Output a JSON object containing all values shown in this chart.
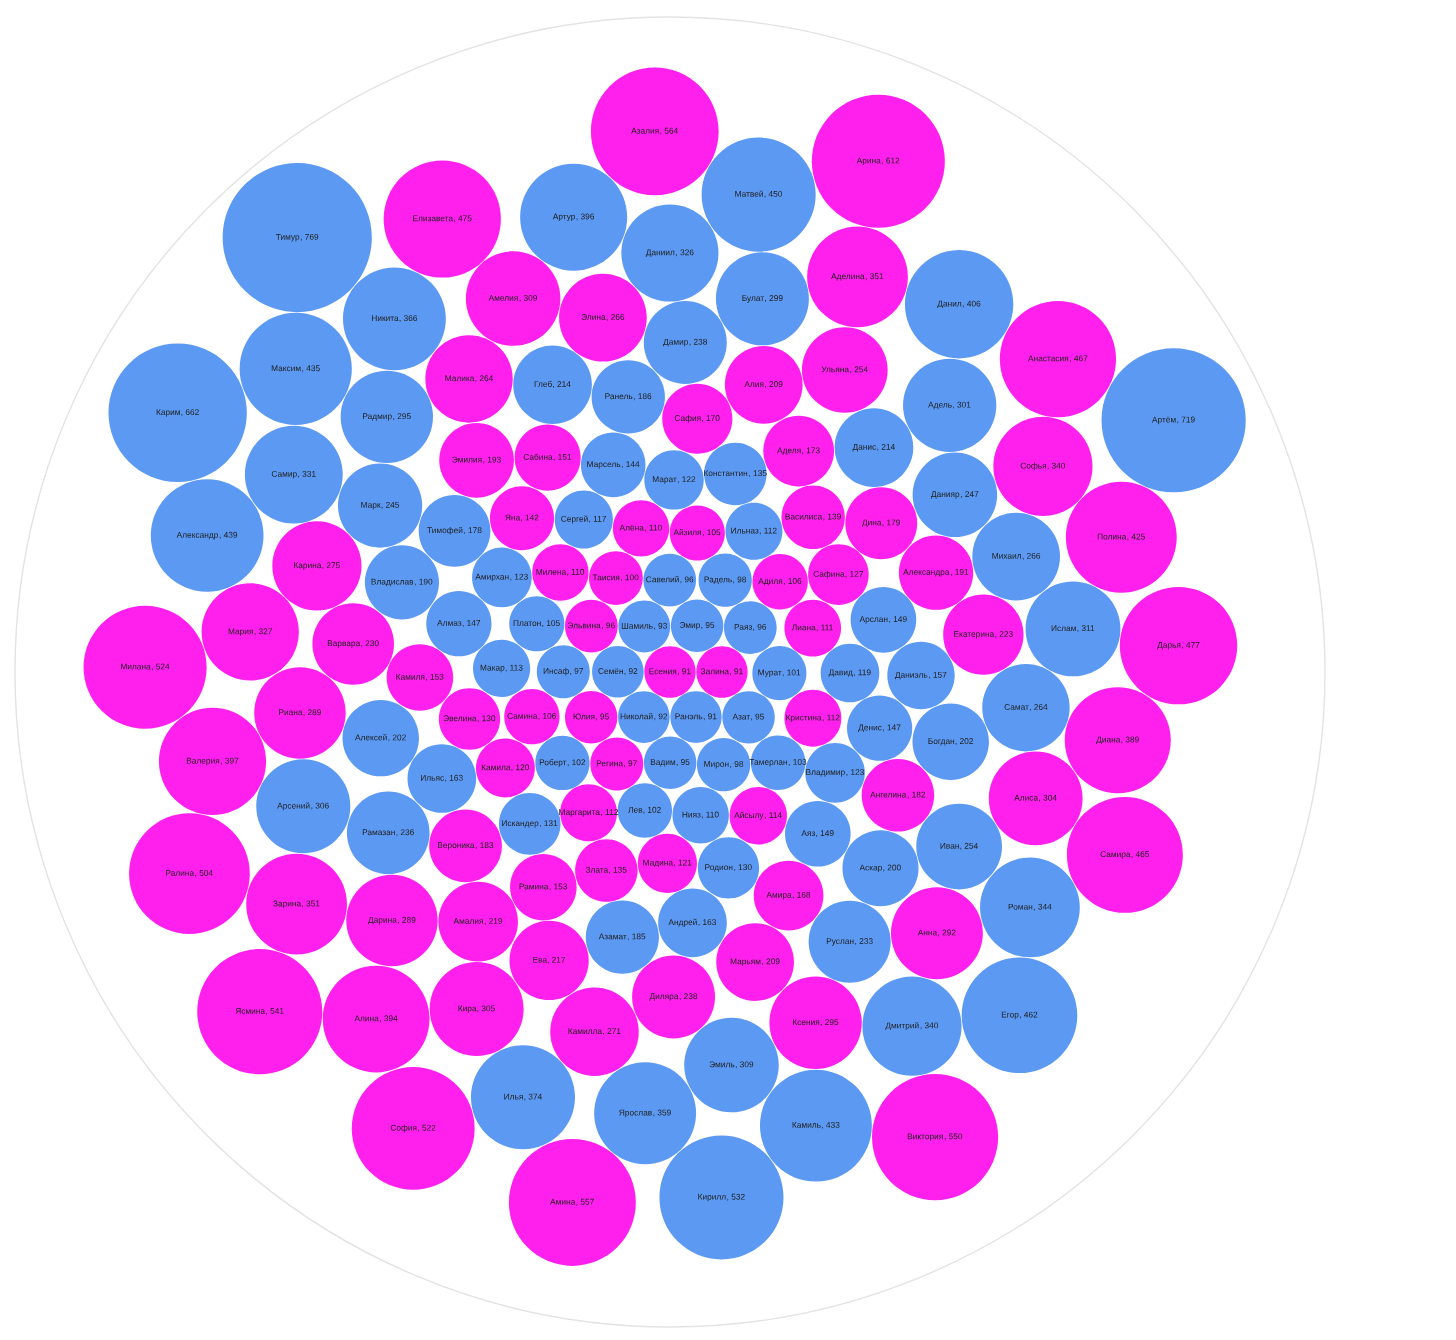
{
  "chart_data": {
    "type": "other",
    "value_labels": [
      ", 769",
      ", 719",
      ", 662",
      ", 612",
      ", 564",
      ", 557",
      ", 550",
      ", 541",
      ", 532",
      ", 524",
      ", 522",
      ", 504",
      ", 477",
      ", 475",
      ", 467",
      ", 465",
      ", 462",
      ", 450",
      ", 439",
      ", 435",
      ", 433",
      ", 425",
      ", 406",
      ", 397",
      ", 396",
      ", 394",
      ", 389",
      ", 374",
      ", 366",
      ", 359",
      ", 351",
      ", 351",
      ", 344",
      ", 340",
      ", 340",
      ", 331",
      ", 327",
      ", 326",
      ", 311",
      ", 309",
      ", 309",
      ", 306",
      ", 305",
      ", 304",
      ", 301",
      ", 299",
      ", 295",
      ", 295",
      ", 292",
      ", 289",
      ", 289",
      ", 275",
      ", 271",
      ", 266",
      ", 266",
      ", 264",
      ", 264",
      ", 254",
      ", 254",
      ", 247",
      ", 245",
      ", 238",
      ", 238",
      ", 236",
      ", 233",
      ", 230",
      ", 223",
      ", 219",
      ", 217",
      ", 214",
      ", 214",
      ", 209",
      ", 209",
      ", 202",
      ", 202",
      ", 200",
      ", 193",
      ", 191",
      ", 190",
      ", 186",
      ", 185",
      ", 183",
      ", 182",
      ", 179",
      ", 178",
      ", 173",
      ", 170",
      ", 168",
      ", 163",
      ", 163",
      ", 157",
      ", 153",
      ", 153",
      ", 151",
      ", 149",
      ", 149",
      ", 147",
      ", 147",
      ", 144",
      ", 142",
      ", 139",
      ", 135",
      ", 135",
      ", 131",
      ", 130",
      ", 130",
      ", 127",
      ", 123",
      ", 123",
      ", 122",
      ", 121",
      ", 120",
      ", 119",
      ", 117",
      ", 114",
      ", 113",
      ", 112",
      ", 112",
      ", 112",
      ", 111",
      ", 110",
      ", 110",
      ", 110",
      ", 106",
      ", 106",
      ", 105",
      ", 105",
      ", 103",
      ", 102",
      ", 102",
      ", 101",
      ", 100",
      ", 98",
      ", 98",
      ", 97",
      ", 97",
      ", 96",
      ", 96",
      ", 96",
      ", 95",
      ", 95",
      ", 95",
      ", 95",
      ", 93",
      ", 92",
      ", 92",
      ", 91",
      ", 91",
      ", 91"
    ],
    "categories": [
      "Тимур",
      "Артём",
      "Карим",
      "Арина",
      "Азалия",
      "Амина",
      "Виктория",
      "Ясмина",
      "Кирилл",
      "Милана",
      "София",
      "Ралина",
      "Дарья",
      "Елизавета",
      "Анастасия",
      "Самира",
      "Егор",
      "Матвей",
      "Александр",
      "Максим",
      "Камиль",
      "Полина",
      "Данил",
      "Валерия",
      "Артур",
      "Алина",
      "Диана",
      "Илья",
      "Никита",
      "Ярослав",
      "Зарина",
      "Аделина",
      "Роман",
      "Дмитрий",
      "Софья",
      "Самир",
      "Мария",
      "Даниил",
      "Ислам",
      "Амелия",
      "Эмиль",
      "Арсений",
      "Кира",
      "Алиса",
      "Адель",
      "Булат",
      "Радмир",
      "Ксения",
      "Анна",
      "Дарина",
      "Риана",
      "Карина",
      "Камилла",
      "Михаил",
      "Элина",
      "Самат",
      "Малика",
      "Ульяна",
      "Иван",
      "Данияр",
      "Марк",
      "Дамир",
      "Диляра",
      "Рамазан",
      "Руслан",
      "Варвара",
      "Екатерина",
      "Амалия",
      "Ева",
      "Глеб",
      "Данис",
      "Марьям",
      "Алия",
      "Алексей",
      "Богдан",
      "Аскар",
      "Эмилия",
      "Александра",
      "Владислав",
      "Ранель",
      "Азамат",
      "Вероника",
      "Ангелина",
      "Дина",
      "Тимофей",
      "Аделя",
      "Сафия",
      "Амира",
      "Андрей",
      "Ильяс",
      "Даниэль",
      "Камиля",
      "Рамина",
      "Сабина",
      "Арслан",
      "Аяз",
      "Денис",
      "Алмаз",
      "Марсель",
      "Яна",
      "Василиса",
      "Константин",
      "Злата",
      "Искандер",
      "Эвелина",
      "Родион",
      "Сафина",
      "Владимир",
      "Амирхан",
      "Марат",
      "Мадина",
      "Камила",
      "Давид",
      "Сергей",
      "Айсылу",
      "Макар",
      "Ильназ",
      "Маргарита",
      "Кристина",
      "Лиана",
      "Милена",
      "Алёна",
      "Нияз",
      "Самина",
      "Адиля",
      "Айзиля",
      "Платон",
      "Тамерлан",
      "Роберт",
      "Лев",
      "Мурат",
      "Таисия",
      "Радель",
      "Мирон",
      "Инсаф",
      "Регина",
      "Савелий",
      "Раяз",
      "Эльвина",
      "Юлия",
      "Вадим",
      "Азат",
      "Эмир",
      "Шамиль",
      "Семён",
      "Николай",
      "Ранэль",
      "Залина",
      "Есения"
    ],
    "values": [
      769,
      719,
      662,
      612,
      564,
      557,
      550,
      541,
      532,
      524,
      522,
      504,
      477,
      475,
      467,
      465,
      462,
      450,
      439,
      435,
      433,
      425,
      406,
      397,
      396,
      394,
      389,
      374,
      366,
      359,
      351,
      351,
      344,
      340,
      340,
      331,
      327,
      326,
      311,
      309,
      309,
      306,
      305,
      304,
      301,
      299,
      295,
      295,
      292,
      289,
      289,
      275,
      271,
      266,
      266,
      264,
      264,
      254,
      254,
      247,
      245,
      238,
      238,
      236,
      233,
      230,
      223,
      219,
      217,
      214,
      214,
      209,
      209,
      202,
      202,
      200,
      193,
      191,
      190,
      186,
      185,
      183,
      182,
      179,
      178,
      173,
      170,
      168,
      163,
      163,
      157,
      153,
      153,
      151,
      149,
      149,
      147,
      147,
      144,
      142,
      139,
      135,
      135,
      131,
      130,
      130,
      127,
      123,
      123,
      122,
      121,
      120,
      119,
      117,
      114,
      113,
      112,
      112,
      112,
      111,
      110,
      110,
      110,
      106,
      106,
      105,
      105,
      103,
      102,
      102,
      101,
      100,
      98,
      98,
      97,
      97,
      96,
      96,
      96,
      95,
      95,
      95,
      95,
      93,
      92,
      92,
      91,
      91,
      91
    ],
    "colors": [
      "#5b99f3",
      "#5b99f3",
      "#5b99f3",
      "#ff20ee",
      "#ff20ee",
      "#ff20ee",
      "#ff20ee",
      "#ff20ee",
      "#5b99f3",
      "#ff20ee",
      "#ff20ee",
      "#ff20ee",
      "#ff20ee",
      "#ff20ee",
      "#ff20ee",
      "#ff20ee",
      "#5b99f3",
      "#5b99f3",
      "#5b99f3",
      "#5b99f3",
      "#5b99f3",
      "#ff20ee",
      "#5b99f3",
      "#ff20ee",
      "#5b99f3",
      "#ff20ee",
      "#ff20ee",
      "#5b99f3",
      "#5b99f3",
      "#5b99f3",
      "#ff20ee",
      "#ff20ee",
      "#5b99f3",
      "#5b99f3",
      "#ff20ee",
      "#5b99f3",
      "#ff20ee",
      "#5b99f3",
      "#5b99f3",
      "#ff20ee",
      "#5b99f3",
      "#5b99f3",
      "#ff20ee",
      "#ff20ee",
      "#5b99f3",
      "#5b99f3",
      "#5b99f3",
      "#ff20ee",
      "#ff20ee",
      "#ff20ee",
      "#ff20ee",
      "#ff20ee",
      "#ff20ee",
      "#5b99f3",
      "#ff20ee",
      "#5b99f3",
      "#ff20ee",
      "#ff20ee",
      "#5b99f3",
      "#5b99f3",
      "#5b99f3",
      "#5b99f3",
      "#ff20ee",
      "#5b99f3",
      "#5b99f3",
      "#ff20ee",
      "#ff20ee",
      "#ff20ee",
      "#ff20ee",
      "#5b99f3",
      "#5b99f3",
      "#ff20ee",
      "#ff20ee",
      "#5b99f3",
      "#5b99f3",
      "#5b99f3",
      "#ff20ee",
      "#ff20ee",
      "#5b99f3",
      "#5b99f3",
      "#5b99f3",
      "#ff20ee",
      "#ff20ee",
      "#ff20ee",
      "#5b99f3",
      "#ff20ee",
      "#ff20ee",
      "#ff20ee",
      "#5b99f3",
      "#5b99f3",
      "#5b99f3",
      "#ff20ee",
      "#ff20ee",
      "#ff20ee",
      "#5b99f3",
      "#5b99f3",
      "#5b99f3",
      "#5b99f3",
      "#5b99f3",
      "#ff20ee",
      "#ff20ee",
      "#5b99f3",
      "#ff20ee",
      "#5b99f3",
      "#ff20ee",
      "#5b99f3",
      "#ff20ee",
      "#5b99f3",
      "#5b99f3",
      "#5b99f3",
      "#ff20ee",
      "#ff20ee",
      "#5b99f3",
      "#5b99f3",
      "#ff20ee",
      "#5b99f3",
      "#5b99f3",
      "#ff20ee",
      "#ff20ee",
      "#ff20ee",
      "#ff20ee",
      "#ff20ee",
      "#5b99f3",
      "#ff20ee",
      "#ff20ee",
      "#ff20ee",
      "#5b99f3",
      "#5b99f3",
      "#5b99f3",
      "#5b99f3",
      "#5b99f3",
      "#ff20ee",
      "#5b99f3",
      "#5b99f3",
      "#5b99f3",
      "#ff20ee",
      "#5b99f3",
      "#5b99f3",
      "#ff20ee",
      "#ff20ee",
      "#5b99f3",
      "#5b99f3",
      "#5b99f3",
      "#5b99f3",
      "#5b99f3",
      "#5b99f3",
      "#5b99f3",
      "#ff20ee",
      "#ff20ee"
    ]
  }
}
